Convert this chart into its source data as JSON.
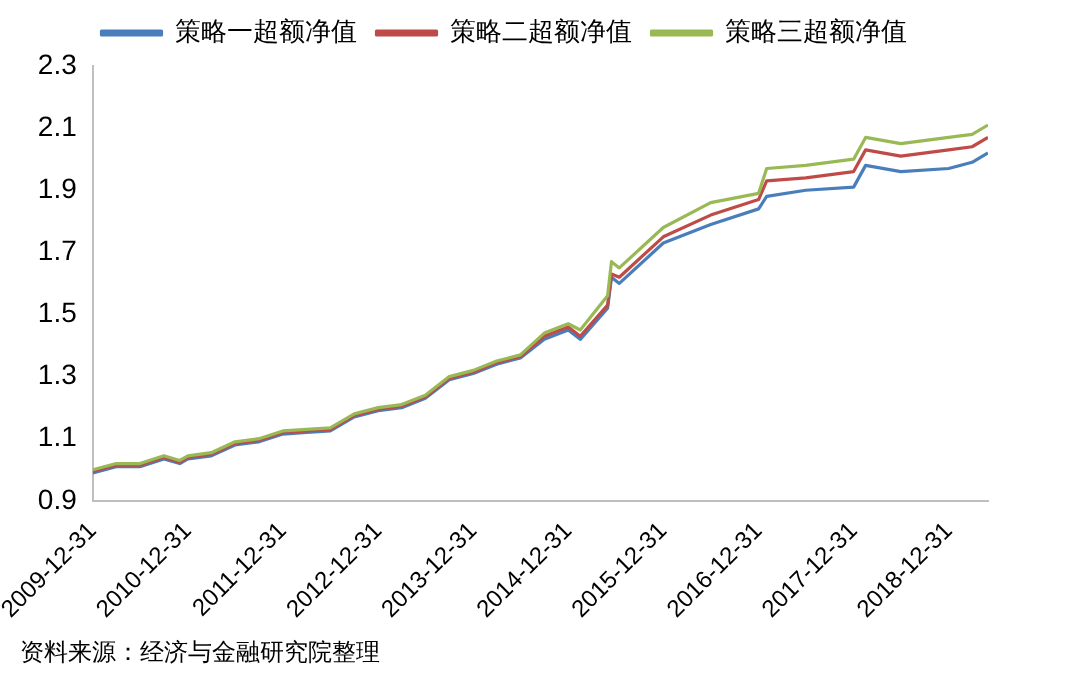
{
  "chart_data": {
    "type": "line",
    "legend": "top",
    "grid": false,
    "marker": "none",
    "line_style": "solid",
    "x": [
      "2009-12-31",
      "2010-03-31",
      "2010-06-30",
      "2010-09-30",
      "2010-11-30",
      "2010-12-31",
      "2011-03-31",
      "2011-06-30",
      "2011-09-30",
      "2011-12-31",
      "2012-03-31",
      "2012-06-30",
      "2012-09-30",
      "2012-12-31",
      "2013-03-31",
      "2013-06-30",
      "2013-09-30",
      "2013-12-31",
      "2014-03-31",
      "2014-06-30",
      "2014-09-30",
      "2014-12-31",
      "2015-02-15",
      "2015-05-31",
      "2015-06-15",
      "2015-07-15",
      "2015-12-31",
      "2016-06-30",
      "2016-12-31",
      "2017-01-31",
      "2017-06-30",
      "2017-12-31",
      "2018-02-15",
      "2018-06-30",
      "2018-12-31",
      "2019-03-31",
      "2019-05-31"
    ],
    "series": [
      {
        "name": "策略一超额净值",
        "color": "#4a7ebb",
        "values": [
          0.99,
          1.01,
          1.01,
          1.035,
          1.02,
          1.035,
          1.045,
          1.08,
          1.09,
          1.115,
          1.12,
          1.125,
          1.17,
          1.19,
          1.2,
          1.23,
          1.29,
          1.31,
          1.34,
          1.36,
          1.42,
          1.45,
          1.42,
          1.52,
          1.62,
          1.6,
          1.73,
          1.79,
          1.84,
          1.88,
          1.9,
          1.91,
          1.98,
          1.96,
          1.97,
          1.99,
          2.02
        ]
      },
      {
        "name": "策略二超额净值",
        "color": "#be4b48",
        "values": [
          0.995,
          1.015,
          1.015,
          1.04,
          1.025,
          1.04,
          1.05,
          1.085,
          1.095,
          1.12,
          1.125,
          1.13,
          1.175,
          1.195,
          1.205,
          1.235,
          1.295,
          1.315,
          1.345,
          1.365,
          1.43,
          1.46,
          1.43,
          1.53,
          1.63,
          1.62,
          1.75,
          1.82,
          1.87,
          1.93,
          1.94,
          1.96,
          2.03,
          2.01,
          2.03,
          2.04,
          2.07
        ]
      },
      {
        "name": "策略三超额净值",
        "color": "#98b954",
        "values": [
          1.0,
          1.02,
          1.02,
          1.045,
          1.03,
          1.045,
          1.055,
          1.09,
          1.1,
          1.125,
          1.13,
          1.135,
          1.18,
          1.2,
          1.21,
          1.24,
          1.3,
          1.32,
          1.35,
          1.37,
          1.44,
          1.47,
          1.45,
          1.56,
          1.67,
          1.65,
          1.78,
          1.86,
          1.89,
          1.97,
          1.98,
          2.0,
          2.07,
          2.05,
          2.07,
          2.08,
          2.11
        ]
      }
    ],
    "xlim": [
      "2009-12-31",
      "2019-05-31"
    ],
    "xticks": [
      "2009-12-31",
      "2010-12-31",
      "2011-12-31",
      "2012-12-31",
      "2013-12-31",
      "2014-12-31",
      "2015-12-31",
      "2016-12-31",
      "2017-12-31",
      "2018-12-31"
    ],
    "ylim": [
      0.9,
      2.3
    ],
    "yticks": [
      0.9,
      1.1,
      1.3,
      1.5,
      1.7,
      1.9,
      2.1,
      2.3
    ],
    "annotations": [
      "资料来源：经济与金融研究院整理"
    ]
  }
}
